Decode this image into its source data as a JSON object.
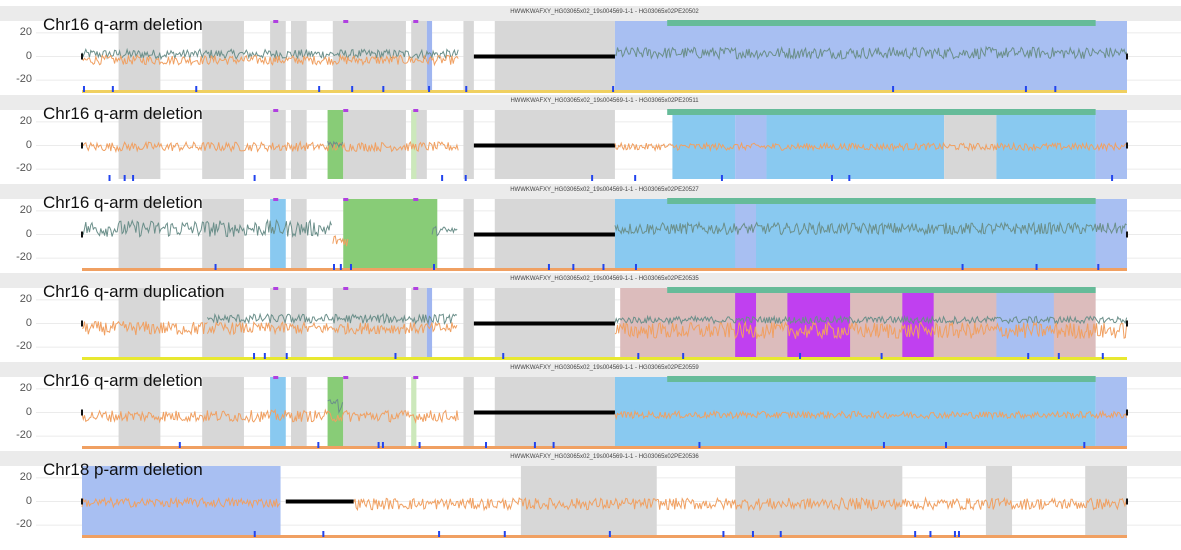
{
  "chart_data": [
    {
      "type": "line",
      "panel_label": "Chr16 q-arm deletion",
      "strip_title": "HWWKWAFXY_HG03065x02_19s004569-1-1 - HG03065x02PE20502",
      "y_ticks": [
        "20",
        "0",
        "-20"
      ],
      "ylim": [
        -30,
        30
      ],
      "xlim": [
        0,
        100
      ],
      "series": [
        {
          "color": "#6b8f8a",
          "baseline": 2,
          "amp": 4,
          "range": [
            0,
            36
          ]
        },
        {
          "color": "#f0a062",
          "baseline": -3,
          "amp": 4,
          "range": [
            0,
            36
          ]
        },
        {
          "color": "#6b8f8a",
          "baseline": 3,
          "amp": 5,
          "range": [
            51,
            100
          ]
        }
      ],
      "regions": [
        {
          "start": 3.5,
          "end": 7.5,
          "color": "#d7d7d7"
        },
        {
          "start": 11.5,
          "end": 15.5,
          "color": "#d7d7d7"
        },
        {
          "start": 18,
          "end": 19.5,
          "color": "#d7d7d7"
        },
        {
          "start": 20,
          "end": 21.5,
          "color": "#d7d7d7"
        },
        {
          "start": 24,
          "end": 31,
          "color": "#d7d7d7"
        },
        {
          "start": 31.5,
          "end": 33,
          "color": "#d7d7d7"
        },
        {
          "start": 33,
          "end": 33.5,
          "color": "#9fb5f0"
        },
        {
          "start": 36.5,
          "end": 37.5,
          "color": "#d7d7d7"
        },
        {
          "start": 39.5,
          "end": 51,
          "color": "#d7d7d7"
        },
        {
          "start": 51,
          "end": 100,
          "color": "#a8bff2"
        }
      ],
      "top_bars": [
        {
          "start": 56,
          "end": 97,
          "color": "#66bb99"
        }
      ],
      "bottom_line_color": "#f0d060",
      "gaps": [
        {
          "start": 37.5,
          "end": 51
        }
      ]
    },
    {
      "type": "line",
      "panel_label": "Chr16 q-arm deletion",
      "strip_title": "HWWKWAFXY_HG03065x02_19s004569-1-1 - HG03065x02PE20511",
      "y_ticks": [
        "20",
        "0",
        "-20"
      ],
      "ylim": [
        -30,
        30
      ],
      "xlim": [
        0,
        100
      ],
      "series": [
        {
          "color": "#f0a062",
          "baseline": -1,
          "amp": 4,
          "range": [
            0,
            36
          ]
        },
        {
          "color": "#6b8f8a",
          "baseline": 2,
          "amp": 4,
          "range": [
            23.5,
            25
          ]
        },
        {
          "color": "#f0a062",
          "baseline": -1,
          "amp": 3,
          "range": [
            51,
            100
          ]
        }
      ],
      "regions": [
        {
          "start": 3.5,
          "end": 7.5,
          "color": "#d7d7d7"
        },
        {
          "start": 11.5,
          "end": 15.5,
          "color": "#d7d7d7"
        },
        {
          "start": 18,
          "end": 19.5,
          "color": "#d7d7d7"
        },
        {
          "start": 20,
          "end": 21.5,
          "color": "#d7d7d7"
        },
        {
          "start": 23.5,
          "end": 25,
          "color": "#88cc77"
        },
        {
          "start": 25,
          "end": 31,
          "color": "#d7d7d7"
        },
        {
          "start": 31.5,
          "end": 33,
          "color": "#d7d7d7"
        },
        {
          "start": 31.5,
          "end": 32,
          "color": "#cce8bb"
        },
        {
          "start": 36.5,
          "end": 37.5,
          "color": "#d7d7d7"
        },
        {
          "start": 39.5,
          "end": 51,
          "color": "#d7d7d7"
        },
        {
          "start": 56.5,
          "end": 62.5,
          "color": "#89c9f0"
        },
        {
          "start": 65.5,
          "end": 82.5,
          "color": "#89c9f0"
        },
        {
          "start": 62.5,
          "end": 65.5,
          "color": "#a8bff2"
        },
        {
          "start": 82.5,
          "end": 87.5,
          "color": "#d7d7d7"
        },
        {
          "start": 87.5,
          "end": 97,
          "color": "#89c9f0"
        },
        {
          "start": 97,
          "end": 100,
          "color": "#a8bff2"
        }
      ],
      "top_bars": [
        {
          "start": 56,
          "end": 97,
          "color": "#66bb99"
        }
      ],
      "bottom_line_color": "#ffffff",
      "gaps": [
        {
          "start": 37.5,
          "end": 51
        }
      ]
    },
    {
      "type": "line",
      "panel_label": "Chr16 q-arm deletion",
      "strip_title": "HWWKWAFXY_HG03065x02_19s004569-1-1 - HG03065x02PE20527",
      "y_ticks": [
        "20",
        "0",
        "-20"
      ],
      "ylim": [
        -30,
        30
      ],
      "xlim": [
        0,
        100
      ],
      "series": [
        {
          "color": "#6b8f8a",
          "baseline": 5,
          "amp": 7,
          "range": [
            0,
            24
          ]
        },
        {
          "color": "#6b8f8a",
          "baseline": 3,
          "amp": 4,
          "range": [
            33.5,
            36
          ]
        },
        {
          "color": "#f0a062",
          "baseline": -5,
          "amp": 5,
          "range": [
            24,
            25.5
          ]
        },
        {
          "color": "#6b8f8a",
          "baseline": 5,
          "amp": 5,
          "range": [
            51,
            100
          ]
        }
      ],
      "regions": [
        {
          "start": 3.5,
          "end": 7.5,
          "color": "#d7d7d7"
        },
        {
          "start": 11.5,
          "end": 15.5,
          "color": "#d7d7d7"
        },
        {
          "start": 18,
          "end": 19.5,
          "color": "#89c9f0"
        },
        {
          "start": 20,
          "end": 21.5,
          "color": "#d7d7d7"
        },
        {
          "start": 25,
          "end": 34,
          "color": "#88cc77"
        },
        {
          "start": 36.5,
          "end": 37.5,
          "color": "#d7d7d7"
        },
        {
          "start": 39.5,
          "end": 51,
          "color": "#d7d7d7"
        },
        {
          "start": 51,
          "end": 100,
          "color": "#89c9f0"
        },
        {
          "start": 62.5,
          "end": 64.5,
          "color": "#a8bff2"
        },
        {
          "start": 97,
          "end": 100,
          "color": "#a8bff2"
        }
      ],
      "top_bars": [
        {
          "start": 56,
          "end": 97,
          "color": "#66bb99"
        }
      ],
      "bottom_line_color": "#f0a062",
      "gaps": [
        {
          "start": 37.5,
          "end": 51
        }
      ]
    },
    {
      "type": "line",
      "panel_label": "Chr16 q-arm duplication",
      "strip_title": "HWWKWAFXY_HG03065x02_19s004569-1-1 - HG03065x02PE20535",
      "y_ticks": [
        "20",
        "0",
        "-20"
      ],
      "ylim": [
        -30,
        30
      ],
      "xlim": [
        0,
        100
      ],
      "series": [
        {
          "color": "#f0a062",
          "baseline": -4,
          "amp": 6,
          "range": [
            0,
            12
          ]
        },
        {
          "color": "#6b8f8a",
          "baseline": 4,
          "amp": 4,
          "range": [
            12,
            36
          ]
        },
        {
          "color": "#f0a062",
          "baseline": -4,
          "amp": 5,
          "range": [
            12,
            36
          ]
        },
        {
          "color": "#6b8f8a",
          "baseline": 3,
          "amp": 3,
          "range": [
            51,
            100
          ]
        },
        {
          "color": "#f0a062",
          "baseline": -6,
          "amp": 7,
          "range": [
            51,
            100
          ]
        }
      ],
      "regions": [
        {
          "start": 3.5,
          "end": 7.5,
          "color": "#d7d7d7"
        },
        {
          "start": 11.5,
          "end": 15.5,
          "color": "#d7d7d7"
        },
        {
          "start": 18,
          "end": 19.5,
          "color": "#d7d7d7"
        },
        {
          "start": 20,
          "end": 21.5,
          "color": "#d7d7d7"
        },
        {
          "start": 24,
          "end": 31,
          "color": "#d7d7d7"
        },
        {
          "start": 31.5,
          "end": 33,
          "color": "#d7d7d7"
        },
        {
          "start": 33,
          "end": 33.5,
          "color": "#9fb5f0"
        },
        {
          "start": 36.5,
          "end": 37.5,
          "color": "#d7d7d7"
        },
        {
          "start": 39.5,
          "end": 51,
          "color": "#d7d7d7"
        },
        {
          "start": 51.5,
          "end": 97,
          "color": "#dcbcbc"
        },
        {
          "start": 62.5,
          "end": 64.5,
          "color": "#c040f0"
        },
        {
          "start": 67.5,
          "end": 73.5,
          "color": "#c040f0"
        },
        {
          "start": 78.5,
          "end": 81.5,
          "color": "#c040f0"
        },
        {
          "start": 87.5,
          "end": 93,
          "color": "#a8bff2"
        }
      ],
      "top_bars": [
        {
          "start": 56,
          "end": 97,
          "color": "#66bb99"
        }
      ],
      "bottom_line_color": "#e8e830",
      "gaps": [
        {
          "start": 37.5,
          "end": 51
        }
      ]
    },
    {
      "type": "line",
      "panel_label": "Chr16 q-arm deletion",
      "strip_title": "HWWKWAFXY_HG03065x02_19s004569-1-1 - HG03065x02PE20559",
      "y_ticks": [
        "20",
        "0",
        "-20"
      ],
      "ylim": [
        -30,
        30
      ],
      "xlim": [
        0,
        100
      ],
      "series": [
        {
          "color": "#f0a062",
          "baseline": -3,
          "amp": 5,
          "range": [
            0,
            36
          ]
        },
        {
          "color": "#6b8f8a",
          "baseline": 6,
          "amp": 6,
          "range": [
            23.5,
            25
          ]
        },
        {
          "color": "#f0a062",
          "baseline": -2,
          "amp": 3,
          "range": [
            51,
            100
          ]
        }
      ],
      "regions": [
        {
          "start": 3.5,
          "end": 7.5,
          "color": "#d7d7d7"
        },
        {
          "start": 11.5,
          "end": 15.5,
          "color": "#d7d7d7"
        },
        {
          "start": 18,
          "end": 19.5,
          "color": "#89c9f0"
        },
        {
          "start": 20,
          "end": 21.5,
          "color": "#d7d7d7"
        },
        {
          "start": 23.5,
          "end": 25,
          "color": "#88cc77"
        },
        {
          "start": 25,
          "end": 31,
          "color": "#d7d7d7"
        },
        {
          "start": 31.5,
          "end": 32,
          "color": "#cce8bb"
        },
        {
          "start": 36.5,
          "end": 37.5,
          "color": "#d7d7d7"
        },
        {
          "start": 39.5,
          "end": 51,
          "color": "#d7d7d7"
        },
        {
          "start": 51,
          "end": 97,
          "color": "#89c9f0"
        },
        {
          "start": 97,
          "end": 100,
          "color": "#a8bff2"
        }
      ],
      "top_bars": [
        {
          "start": 56,
          "end": 97,
          "color": "#66bb99"
        }
      ],
      "bottom_line_color": "#f0a062",
      "gaps": [
        {
          "start": 37.5,
          "end": 51
        }
      ]
    },
    {
      "type": "line",
      "panel_label": "Chr18 p-arm deletion",
      "strip_title": "HWWKWAFXY_HG03065x02_19s004569-1-1 - HG03065x02PE20536",
      "y_ticks": [
        "20",
        "0",
        "-20"
      ],
      "ylim": [
        -30,
        30
      ],
      "xlim": [
        0,
        100
      ],
      "series": [
        {
          "color": "#f0a062",
          "baseline": -1,
          "amp": 4,
          "range": [
            0,
            19
          ]
        },
        {
          "color": "#f0a062",
          "baseline": -2,
          "amp": 5,
          "range": [
            26,
            100
          ]
        }
      ],
      "regions": [
        {
          "start": 0,
          "end": 19,
          "color": "#a8bff2"
        },
        {
          "start": 42,
          "end": 55,
          "color": "#d7d7d7"
        },
        {
          "start": 62.5,
          "end": 78.5,
          "color": "#d7d7d7"
        },
        {
          "start": 86.5,
          "end": 89,
          "color": "#d7d7d7"
        },
        {
          "start": 96,
          "end": 100,
          "color": "#d7d7d7"
        }
      ],
      "top_bars": [],
      "bottom_line_color": "#f0a062",
      "gaps": [
        {
          "start": 19.5,
          "end": 26
        }
      ]
    }
  ]
}
